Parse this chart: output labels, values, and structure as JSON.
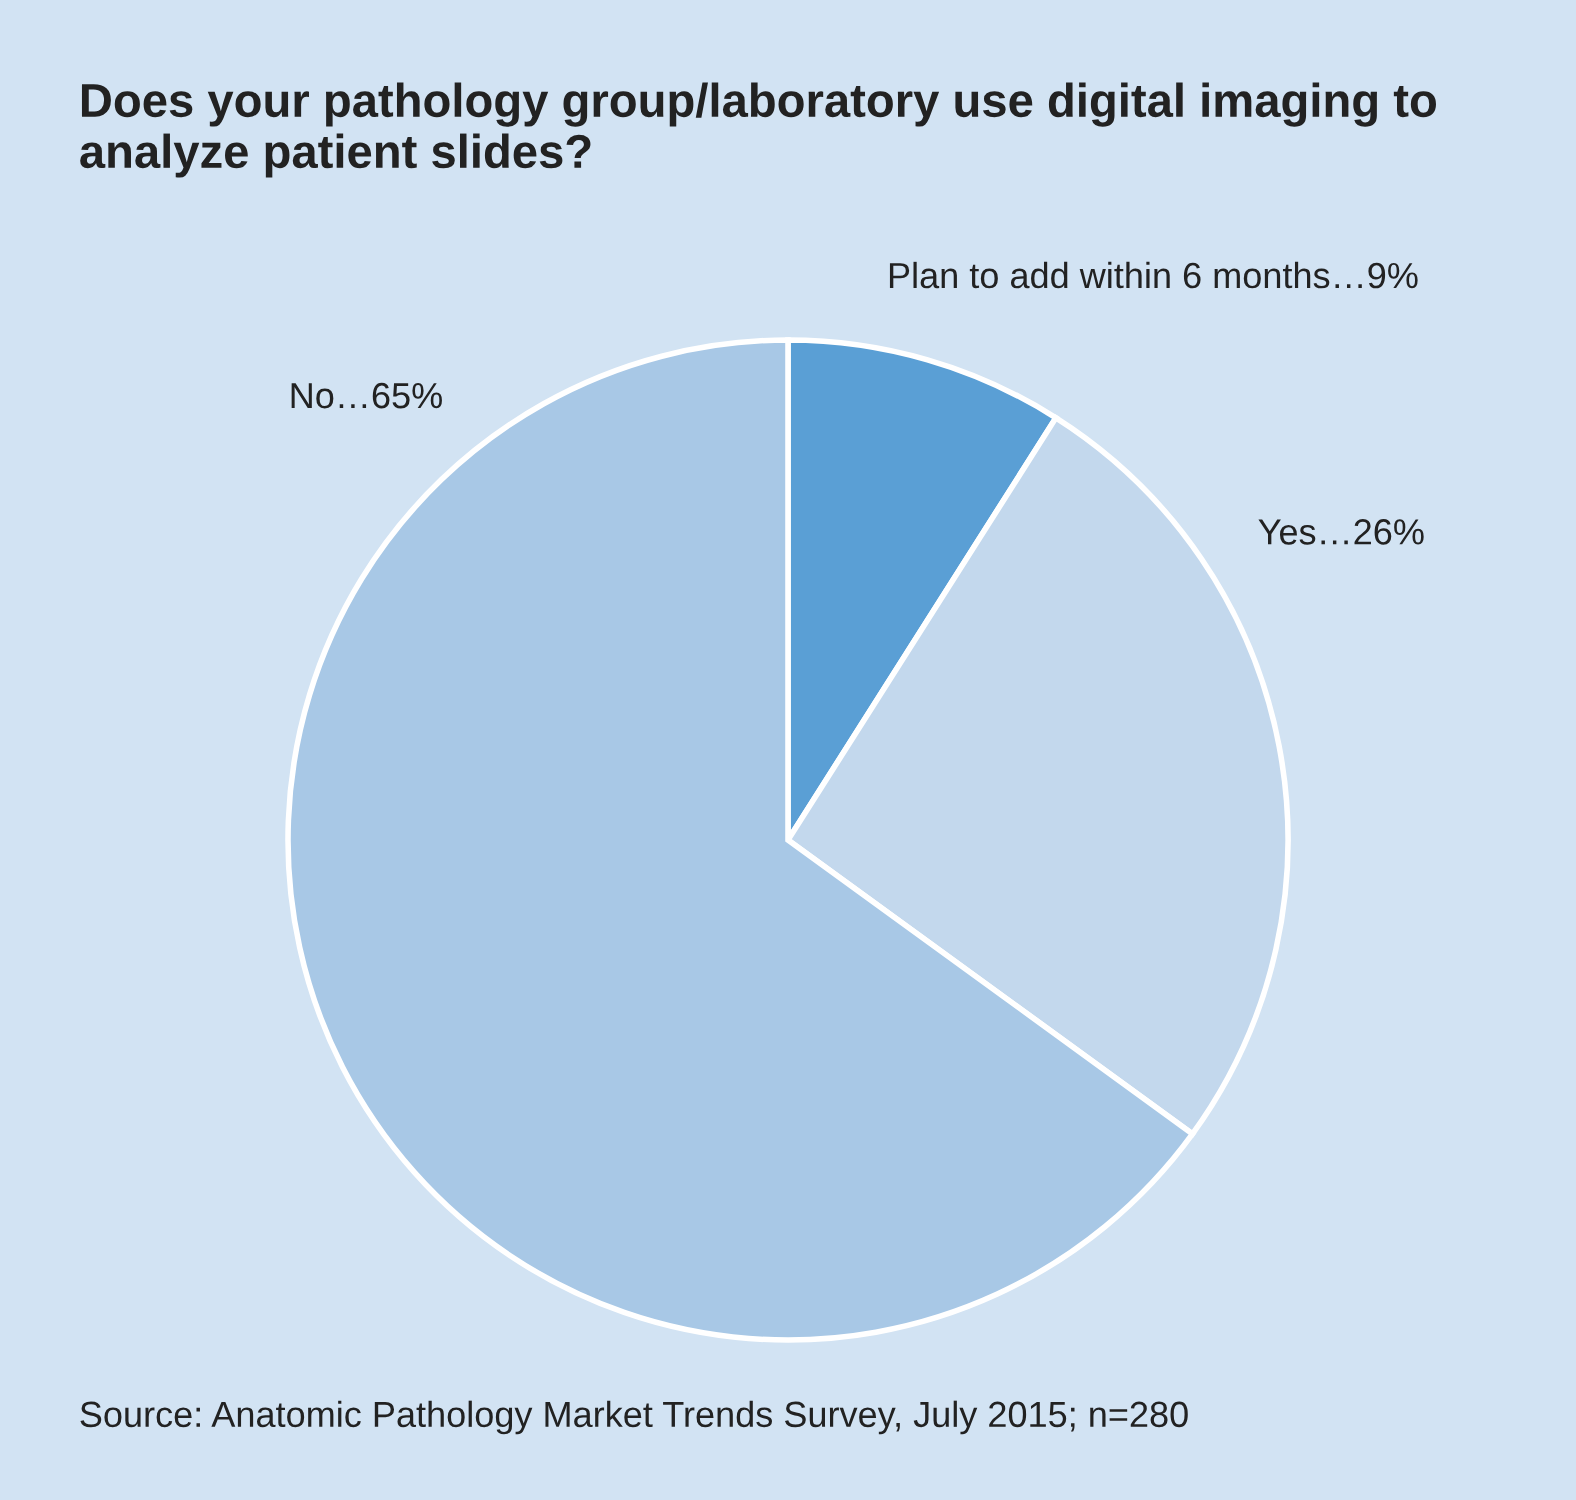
{
  "chart_data": {
    "type": "pie",
    "title": "Does your pathology group/laboratory use digital imaging to analyze patient slides?",
    "categories": [
      "Plan to add within 6 months…9%",
      "Yes…26%",
      "No…65%"
    ],
    "values": [
      9,
      26,
      65
    ],
    "colors": [
      "#5a9fd5",
      "#c3d8ed",
      "#a8c8e6"
    ],
    "annotations": [
      "Source: Anatomic Pathology Market Trends Survey, July 2015; n=280"
    ]
  }
}
